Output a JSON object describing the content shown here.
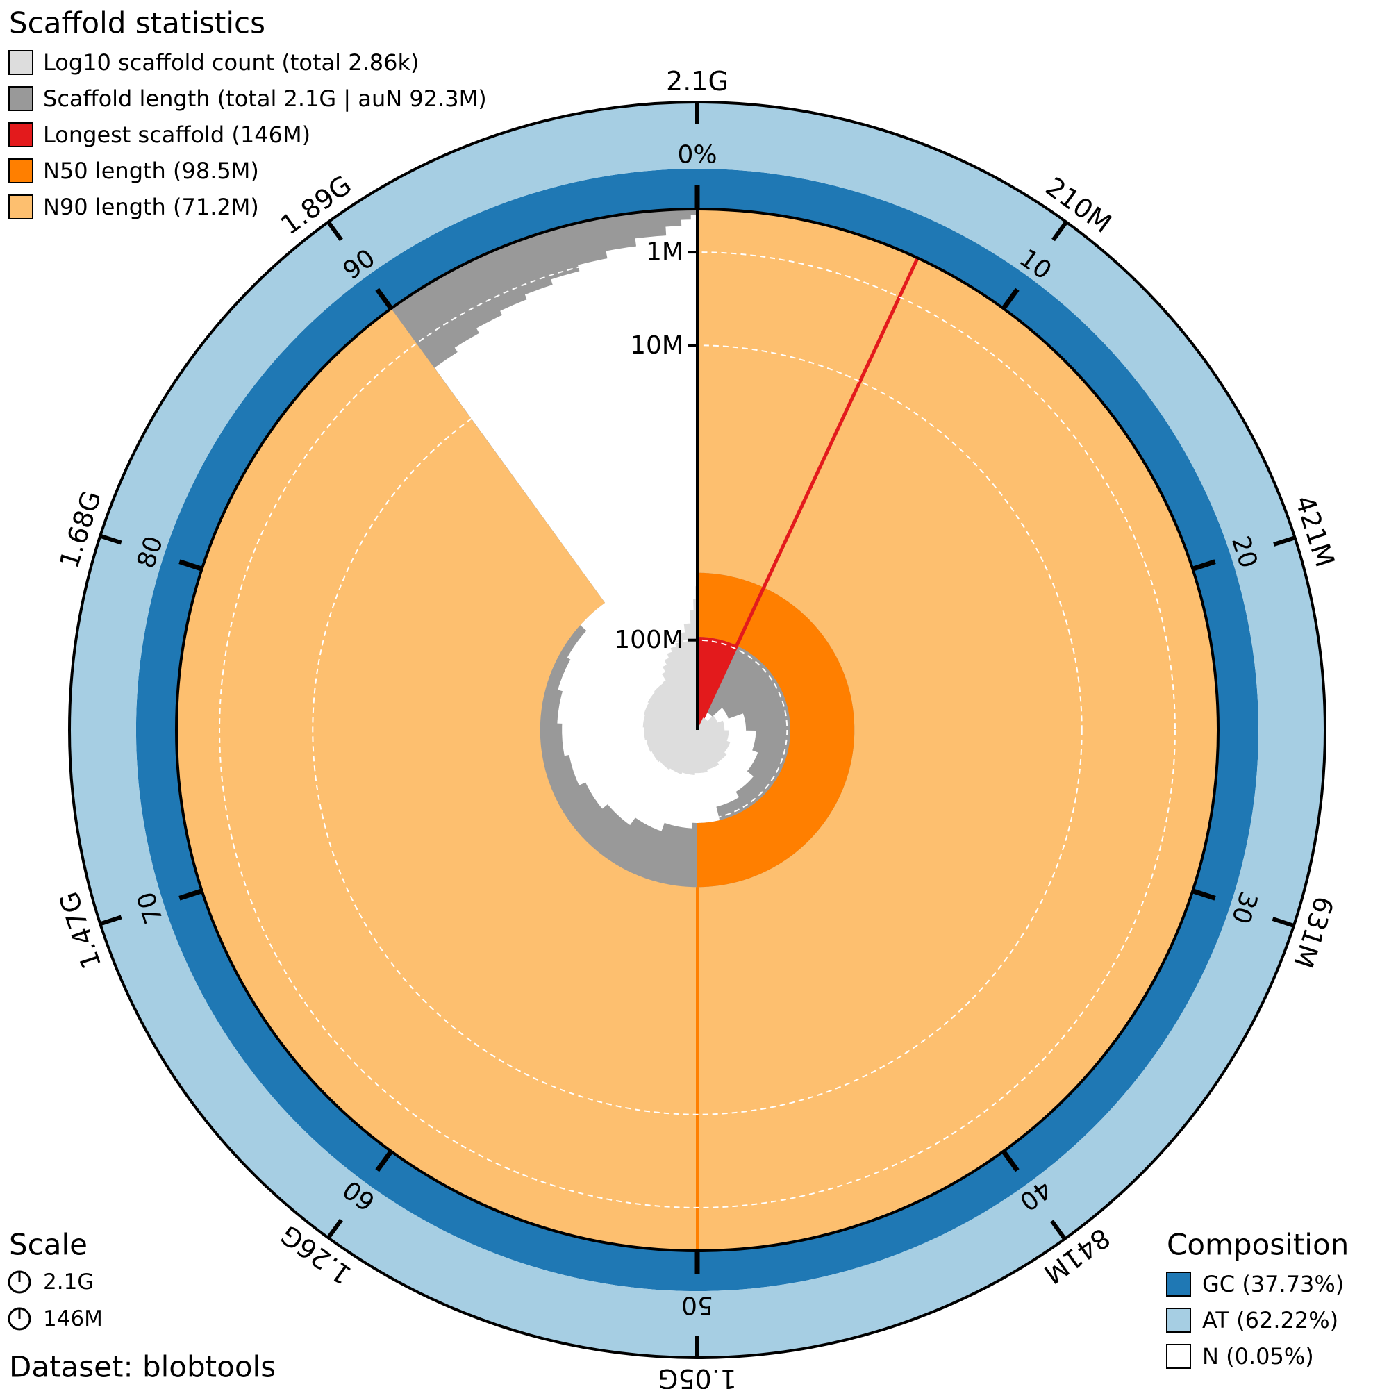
{
  "chart_data": {
    "type": "snail",
    "title": "Scaffold statistics",
    "series": [
      {
        "name": "Log10 scaffold count (total 2.86k)",
        "color": "#dddddd",
        "x": [
          0,
          6.95,
          13.38,
          19.48,
          25.19,
          30.67,
          36.0,
          41.14,
          46.14,
          50.83,
          55.4,
          59.79,
          63.98,
          68.02,
          71.93,
          75.74,
          79.45,
          83.07,
          86.62,
          90.01,
          91,
          92,
          93,
          94,
          95,
          96,
          97,
          98,
          99,
          99.5,
          99.8
        ],
        "values": [
          1,
          2,
          3,
          4,
          5,
          6,
          7,
          8,
          9,
          10,
          11,
          12,
          13,
          14,
          15,
          16,
          17,
          18,
          19,
          20,
          29,
          39,
          51,
          65,
          80,
          105,
          150,
          230,
          450,
          800,
          1500
        ]
      },
      {
        "name": "Scaffold length (total 2.1G | auN 92.3M)",
        "color": "#999999",
        "x": [
          0,
          6.95,
          13.38,
          19.48,
          25.19,
          30.67,
          36.0,
          41.14,
          46.14,
          50.83,
          55.4,
          59.79,
          63.98,
          68.02,
          71.93,
          75.74,
          79.45,
          83.07,
          86.62,
          90.01,
          91,
          92,
          93,
          94,
          95,
          96,
          97,
          98,
          99,
          99.5,
          99.8
        ],
        "values": [
          146000000,
          135000000,
          128000000,
          120000000,
          115000000,
          112000000,
          108000000,
          105000000,
          98500000,
          96000000,
          92000000,
          88000000,
          85000000,
          82000000,
          80000000,
          78000000,
          76000000,
          74500000,
          71200000,
          2900000,
          2500000,
          2100000,
          1800000,
          1500000,
          1200000,
          900000,
          600000,
          350000,
          150000,
          60000,
          20000
        ]
      },
      {
        "name": "Longest scaffold (146M)",
        "color": "#e31a1c",
        "values": [
          146000000
        ]
      },
      {
        "name": "N50 length (98.5M)",
        "color": "#ff7f00",
        "x": [
          50
        ],
        "values": [
          98500000
        ]
      },
      {
        "name": "N90 length (71.2M)",
        "color": "#fdbf6f",
        "x": [
          90
        ],
        "values": [
          71200000
        ]
      }
    ],
    "count_lim": [
      1,
      2860
    ],
    "xlim": [
      0,
      2100000000
    ],
    "xticks": [
      {
        "value": 210000000,
        "label": "210M"
      },
      {
        "value": 421000000,
        "label": "421M"
      },
      {
        "value": 631000000,
        "label": "631M"
      },
      {
        "value": 841000000,
        "label": "841M"
      },
      {
        "value": 1050000000,
        "label": "1.05G"
      },
      {
        "value": 1260000000,
        "label": "1.26G"
      },
      {
        "value": 1470000000,
        "label": "1.47G"
      },
      {
        "value": 1680000000,
        "label": "1.68G"
      },
      {
        "value": 1890000000,
        "label": "1.89G"
      },
      {
        "value": 2100000000,
        "label": "2.1G"
      }
    ],
    "plim": [
      0,
      100
    ],
    "pticks": [
      {
        "value": 0,
        "label": "0%"
      },
      10,
      20,
      30,
      40,
      50,
      60,
      70,
      80,
      90
    ],
    "rlim": [
      0,
      146000000
    ],
    "rticks": [
      {
        "value": 1000000,
        "label": "1M"
      },
      {
        "value": 10000000,
        "label": "10M"
      },
      {
        "value": 100000000,
        "label": "100M"
      }
    ],
    "grid": true,
    "composition": {
      "title": "Composition",
      "series": [
        {
          "name": "GC (37.73%)",
          "color": "#1f78b4",
          "value": 37.73
        },
        {
          "name": "AT (62.22%)",
          "color": "#a6cee3",
          "value": 62.22
        },
        {
          "name": "N (0.05%)",
          "color": "#ffffff",
          "value": 0.05
        }
      ]
    },
    "scale": {
      "title": "Scale",
      "items": [
        "2.1G",
        "146M"
      ]
    },
    "dataset": "Dataset: blobtools"
  }
}
